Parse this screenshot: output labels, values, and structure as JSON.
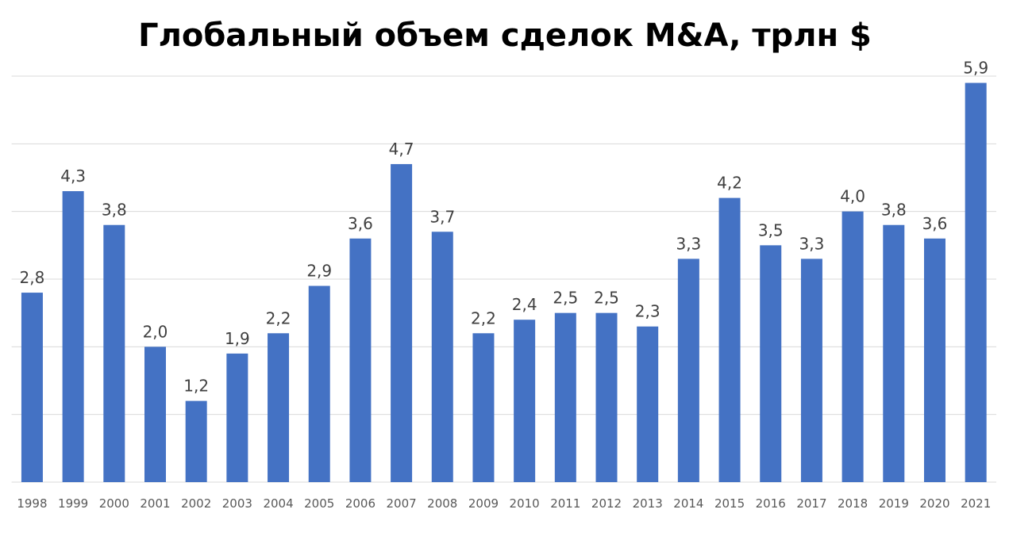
{
  "chart_data": {
    "type": "bar",
    "title": "Глобальный объем сделок M&A, трлн $",
    "xlabel": "",
    "ylabel": "",
    "ylim": [
      0,
      6
    ],
    "grid": true,
    "categories": [
      "1998",
      "1999",
      "2000",
      "2001",
      "2002",
      "2003",
      "2004",
      "2005",
      "2006",
      "2007",
      "2008",
      "2009",
      "2010",
      "2011",
      "2012",
      "2013",
      "2014",
      "2015",
      "2016",
      "2017",
      "2018",
      "2019",
      "2020",
      "2021"
    ],
    "values": [
      2.8,
      4.3,
      3.8,
      2.0,
      1.2,
      1.9,
      2.2,
      2.9,
      3.6,
      4.7,
      3.7,
      2.2,
      2.4,
      2.5,
      2.5,
      2.3,
      3.3,
      4.2,
      3.5,
      3.3,
      4.0,
      3.8,
      3.6,
      5.9
    ],
    "data_labels": [
      "2,8",
      "4,3",
      "3,8",
      "2,0",
      "1,2",
      "1,9",
      "2,2",
      "2,9",
      "3,6",
      "4,7",
      "3,7",
      "2,2",
      "2,4",
      "2,5",
      "2,5",
      "2,3",
      "3,3",
      "4,2",
      "3,5",
      "3,3",
      "4,0",
      "3,8",
      "3,6",
      "5,9"
    ],
    "bar_color": "#4472C4",
    "grid_color": "#D9D9D9"
  }
}
